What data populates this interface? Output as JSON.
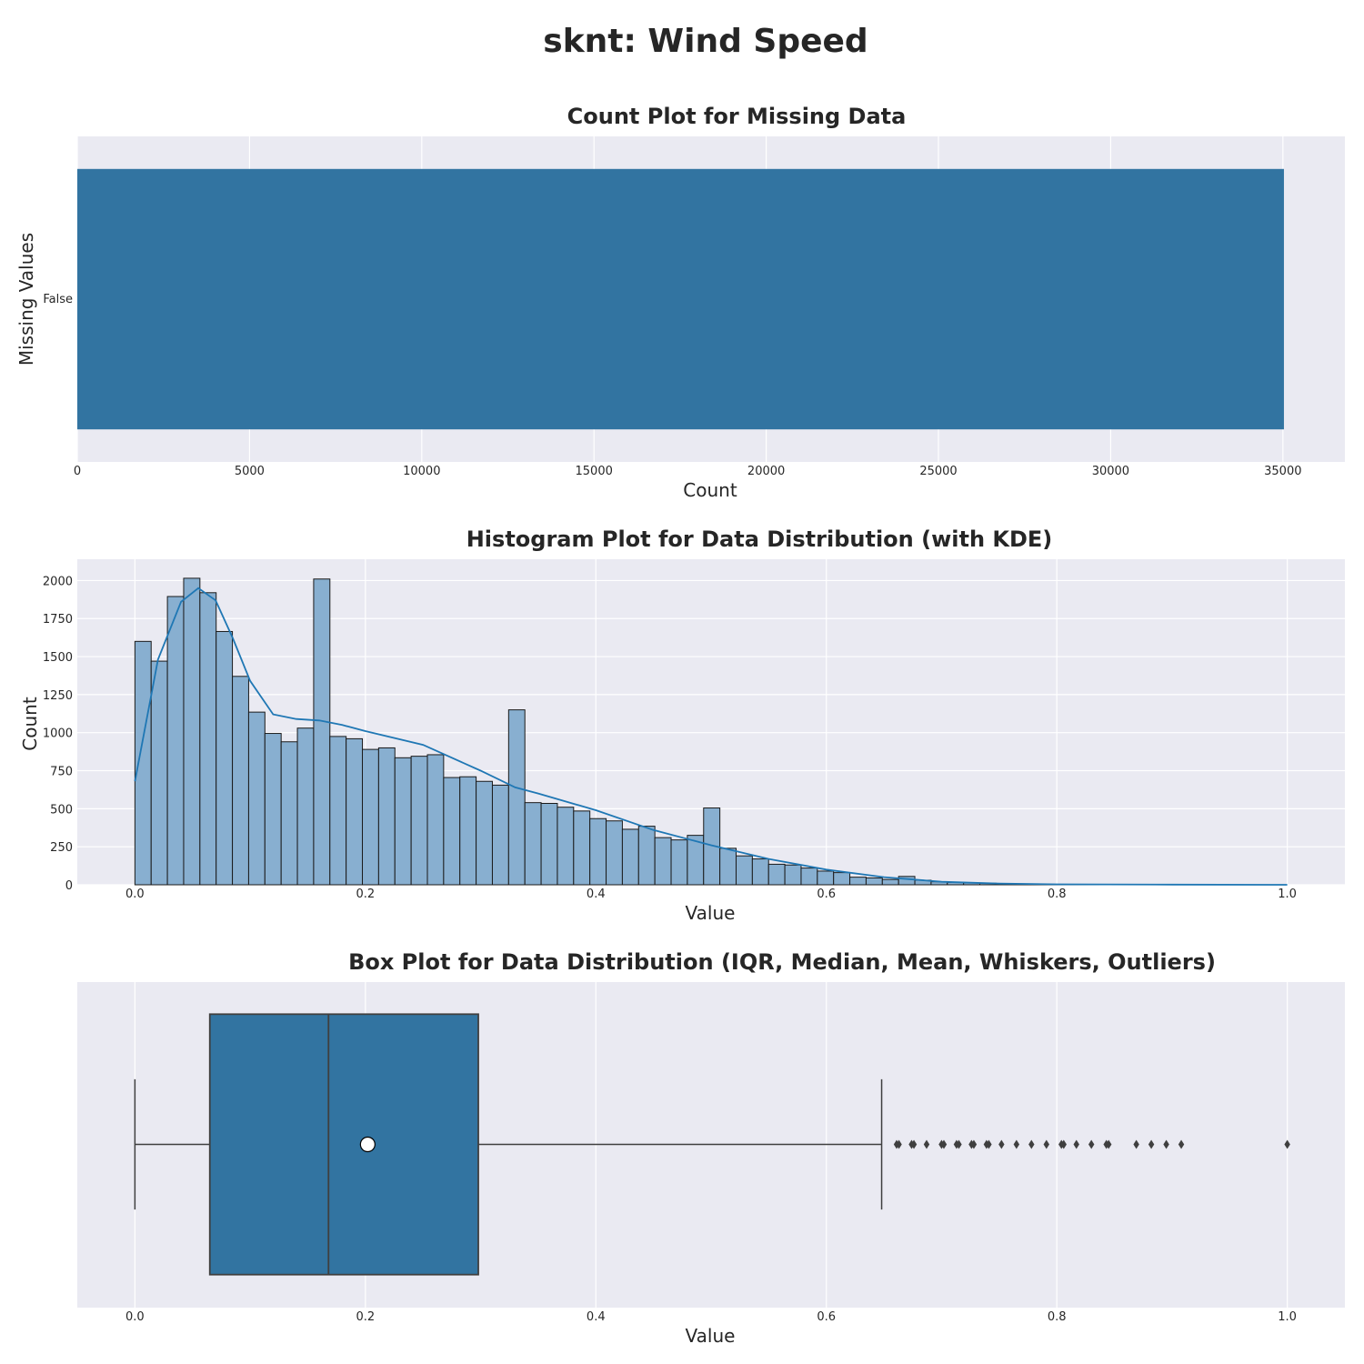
{
  "figure": {
    "title": "sknt: Wind Speed"
  },
  "chart_data": [
    {
      "type": "bar",
      "orientation": "horizontal",
      "title": "Count Plot for Missing Data",
      "xlabel": "Count",
      "ylabel": "Missing Values",
      "categories": [
        "False"
      ],
      "values": [
        35030
      ],
      "xlim": [
        0,
        36800
      ],
      "xticks": [
        0,
        5000,
        10000,
        15000,
        20000,
        25000,
        30000,
        35000
      ],
      "grid": true,
      "color": "#3274a1",
      "background": "#eaeaf2"
    },
    {
      "type": "bar",
      "subtype": "histogram_with_kde",
      "title": "Histogram Plot for Data Distribution (with KDE)",
      "xlabel": "Value",
      "ylabel": "Count",
      "bin_width": 0.0141,
      "bin_start": 0.0,
      "values": [
        1600,
        1470,
        1895,
        2015,
        1920,
        1665,
        1370,
        1135,
        995,
        940,
        1030,
        2010,
        975,
        960,
        890,
        900,
        835,
        845,
        855,
        705,
        710,
        680,
        655,
        1150,
        540,
        535,
        510,
        485,
        435,
        420,
        365,
        385,
        310,
        295,
        325,
        505,
        240,
        190,
        170,
        135,
        130,
        110,
        90,
        80,
        50,
        45,
        35,
        55,
        30,
        20,
        15,
        12,
        10,
        7,
        5,
        4,
        3,
        2,
        2,
        2,
        2,
        1,
        0,
        0,
        0,
        0,
        0,
        0,
        0,
        0,
        0,
        0,
        0,
        0,
        0,
        0,
        15,
        0,
        0,
        0,
        0,
        0,
        0,
        0,
        0,
        0,
        0,
        0,
        0,
        1
      ],
      "kde": {
        "x": [
          0.0,
          0.02,
          0.04,
          0.055,
          0.07,
          0.085,
          0.1,
          0.12,
          0.14,
          0.16,
          0.18,
          0.2,
          0.25,
          0.3,
          0.33,
          0.35,
          0.4,
          0.45,
          0.5,
          0.55,
          0.6,
          0.65,
          0.7,
          0.75,
          0.8,
          0.9,
          1.0
        ],
        "y": [
          680,
          1480,
          1860,
          1950,
          1870,
          1620,
          1340,
          1120,
          1090,
          1080,
          1050,
          1010,
          920,
          750,
          640,
          600,
          490,
          360,
          260,
          170,
          100,
          50,
          20,
          8,
          3,
          1,
          0
        ]
      },
      "xlim": [
        -0.05,
        1.05
      ],
      "ylim": [
        0,
        2140
      ],
      "xticks": [
        0.0,
        0.2,
        0.4,
        0.6,
        0.8,
        1.0
      ],
      "xtick_labels": [
        "0.0",
        "0.2",
        "0.4",
        "0.6",
        "0.8",
        "1.0"
      ],
      "yticks": [
        0,
        250,
        500,
        750,
        1000,
        1250,
        1500,
        1750,
        2000
      ],
      "grid": true,
      "bar_color": "#88afd0",
      "line_color": "#1f77b4",
      "background": "#eaeaf2"
    },
    {
      "type": "box",
      "title": "Box Plot for Data Distribution (IQR, Median, Mean, Whiskers, Outliers)",
      "xlabel": "Value",
      "whisker_low": 0.0,
      "q1": 0.065,
      "median": 0.168,
      "q3": 0.298,
      "whisker_high": 0.648,
      "mean": 0.202,
      "outliers": [
        0.661,
        0.663,
        0.674,
        0.676,
        0.687,
        0.7,
        0.702,
        0.713,
        0.715,
        0.726,
        0.728,
        0.739,
        0.741,
        0.752,
        0.765,
        0.778,
        0.791,
        0.804,
        0.806,
        0.817,
        0.83,
        0.843,
        0.845,
        0.869,
        0.882,
        0.895,
        0.908,
        1.0
      ],
      "xlim": [
        -0.05,
        1.05
      ],
      "xticks": [
        0.0,
        0.2,
        0.4,
        0.6,
        0.8,
        1.0
      ],
      "xtick_labels": [
        "0.0",
        "0.2",
        "0.4",
        "0.6",
        "0.8",
        "1.0"
      ],
      "grid": true,
      "box_color": "#3274a1",
      "background": "#eaeaf2"
    }
  ]
}
